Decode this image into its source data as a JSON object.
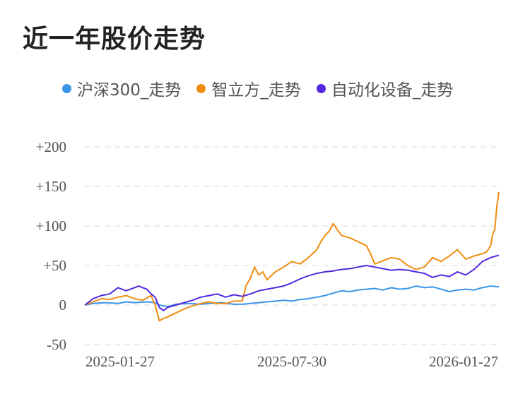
{
  "chart_data": {
    "type": "line",
    "title": "近一年股价走势",
    "legend_position": "top",
    "y_unit": "%",
    "ylim": [
      -50,
      200
    ],
    "yticks": [
      200,
      150,
      100,
      50,
      0,
      -50
    ],
    "ytick_labels": [
      "+200",
      "+150",
      "+100",
      "+50",
      "0",
      "-50"
    ],
    "xlim": [
      0,
      100
    ],
    "xtick_labels": [
      "2025-01-27",
      "2025-07-30",
      "2026-01-27"
    ],
    "grid": true,
    "series": [
      {
        "name": "沪深300_走势",
        "color": "#3a95e8",
        "x": [
          0,
          2,
          5,
          8,
          10,
          12,
          15,
          17,
          18,
          20,
          22,
          25,
          28,
          30,
          33,
          36,
          38,
          40,
          42,
          44,
          46,
          48,
          50,
          52,
          54,
          56,
          58,
          60,
          62,
          64,
          66,
          68,
          70,
          72,
          74,
          76,
          78,
          80,
          82,
          84,
          86,
          88,
          90,
          92,
          94,
          96,
          98,
          100
        ],
        "y": [
          0,
          2,
          3,
          2,
          4,
          3,
          4,
          3,
          0,
          -2,
          1,
          2,
          1,
          2,
          3,
          1,
          1,
          2,
          3,
          4,
          5,
          6,
          5,
          7,
          8,
          10,
          12,
          15,
          18,
          17,
          19,
          20,
          21,
          19,
          22,
          20,
          21,
          24,
          22,
          23,
          20,
          17,
          19,
          20,
          19,
          22,
          24,
          23
        ]
      },
      {
        "name": "智立方_走势",
        "color": "#f08c0f",
        "x": [
          0,
          2,
          4,
          6,
          8,
          10,
          12,
          14,
          16,
          17,
          18,
          19,
          20,
          22,
          24,
          26,
          28,
          30,
          32,
          34,
          36,
          38,
          39,
          40,
          41,
          42,
          43,
          44,
          46,
          48,
          50,
          52,
          54,
          56,
          57,
          58,
          59,
          60,
          61,
          62,
          64,
          66,
          68,
          69,
          70,
          72,
          74,
          76,
          78,
          80,
          82,
          84,
          86,
          88,
          90,
          92,
          94,
          96,
          97,
          98,
          98.5,
          99,
          99.5,
          100
        ],
        "y": [
          0,
          4,
          8,
          7,
          10,
          12,
          8,
          6,
          12,
          0,
          -20,
          -17,
          -15,
          -10,
          -5,
          -1,
          2,
          4,
          2,
          2,
          5,
          5,
          25,
          34,
          48,
          38,
          42,
          32,
          42,
          48,
          55,
          52,
          60,
          70,
          80,
          88,
          93,
          103,
          95,
          88,
          85,
          80,
          75,
          65,
          52,
          56,
          60,
          58,
          50,
          45,
          48,
          60,
          55,
          62,
          70,
          58,
          62,
          65,
          67,
          75,
          90,
          95,
          125,
          143
        ]
      },
      {
        "name": "自动化设备_走势",
        "color": "#5328e0",
        "x": [
          0,
          2,
          4,
          6,
          8,
          10,
          12,
          13,
          14,
          15,
          16,
          17,
          18,
          19,
          20,
          22,
          24,
          26,
          28,
          30,
          32,
          34,
          36,
          38,
          40,
          42,
          44,
          46,
          48,
          50,
          52,
          54,
          56,
          58,
          60,
          62,
          64,
          66,
          68,
          70,
          72,
          74,
          76,
          78,
          80,
          82,
          84,
          86,
          88,
          90,
          92,
          94,
          96,
          98,
          100
        ],
        "y": [
          0,
          8,
          12,
          14,
          22,
          18,
          22,
          24,
          22,
          20,
          14,
          10,
          -3,
          -7,
          -3,
          0,
          3,
          6,
          10,
          12,
          14,
          10,
          13,
          11,
          14,
          18,
          20,
          22,
          24,
          28,
          33,
          37,
          40,
          42,
          43,
          45,
          46,
          48,
          50,
          48,
          46,
          44,
          45,
          44,
          42,
          40,
          35,
          38,
          36,
          42,
          38,
          45,
          55,
          60,
          63
        ]
      }
    ]
  }
}
